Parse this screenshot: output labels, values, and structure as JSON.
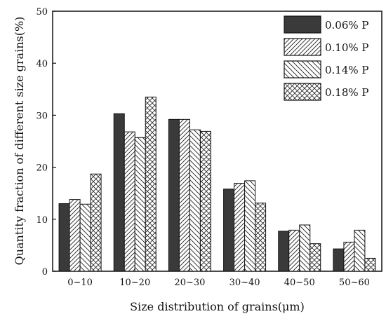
{
  "chart_data": {
    "type": "bar",
    "xlabel": "Size distribution of grains(μm)",
    "ylabel": "Quantity fraction of different size grains(%)",
    "ylim": [
      0,
      50
    ],
    "yticks": [
      0,
      10,
      20,
      30,
      40,
      50
    ],
    "categories": [
      "0~10",
      "10~20",
      "20~30",
      "30~40",
      "40~50",
      "50~60"
    ],
    "legend_position": "top-right",
    "grid": false,
    "series": [
      {
        "name": "0.06% P",
        "pattern": "solid",
        "color": "#3a3a3a",
        "values": [
          13.0,
          30.3,
          29.2,
          15.8,
          7.7,
          4.3
        ]
      },
      {
        "name": "0.10% P",
        "pattern": "hatch-forward",
        "color": "#ffffff",
        "values": [
          13.8,
          26.8,
          29.2,
          16.9,
          7.9,
          5.6
        ]
      },
      {
        "name": "0.14% P",
        "pattern": "hatch-backward",
        "color": "#ffffff",
        "values": [
          12.9,
          25.7,
          27.2,
          17.4,
          8.9,
          7.9
        ]
      },
      {
        "name": "0.18% P",
        "pattern": "crosshatch",
        "color": "#ffffff",
        "values": [
          18.7,
          33.5,
          26.9,
          13.1,
          5.3,
          2.5
        ]
      }
    ]
  }
}
